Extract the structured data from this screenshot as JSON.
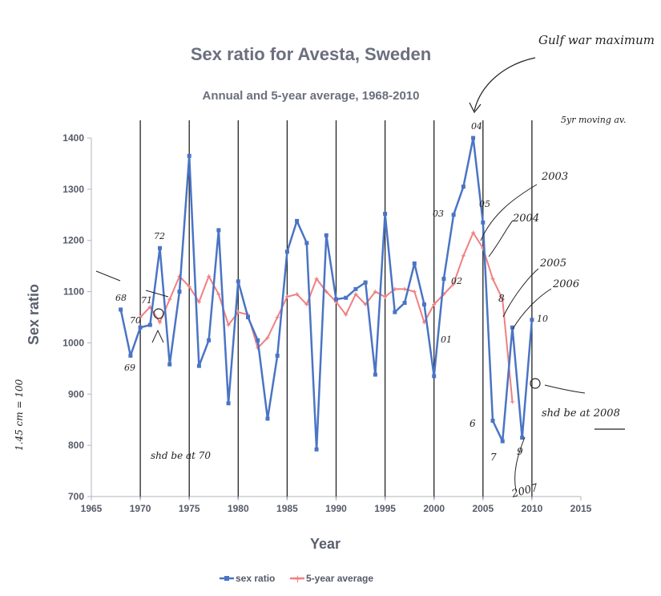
{
  "chart_data": {
    "type": "line",
    "title": "Sex ratio for Avesta, Sweden",
    "subtitle": "Annual and 5-year average, 1968-2010",
    "xlabel": "Year",
    "ylabel": "Sex ratio",
    "xlim": [
      1965,
      2015
    ],
    "ylim": [
      700,
      1400
    ],
    "x_ticks": [
      "1965",
      "1970",
      "1975",
      "1980",
      "1985",
      "1990",
      "1995",
      "2000",
      "2005",
      "2010",
      "2015"
    ],
    "y_ticks": [
      "700",
      "800",
      "900",
      "1000",
      "1100",
      "1200",
      "1300",
      "1400"
    ],
    "grid": false,
    "legend_position": "bottom",
    "series": [
      {
        "name": "sex ratio",
        "color": "#4a74c4",
        "x": [
          1968,
          1969,
          1970,
          1971,
          1972,
          1973,
          1974,
          1975,
          1976,
          1977,
          1978,
          1979,
          1980,
          1981,
          1982,
          1983,
          1984,
          1985,
          1986,
          1987,
          1988,
          1989,
          1990,
          1991,
          1992,
          1993,
          1994,
          1995,
          1996,
          1997,
          1998,
          1999,
          2000,
          2001,
          2002,
          2003,
          2004,
          2005,
          2006,
          2007,
          2008,
          2009,
          2010
        ],
        "y": [
          1065,
          975,
          1030,
          1035,
          1185,
          958,
          1100,
          1365,
          955,
          1005,
          1220,
          882,
          1120,
          1050,
          1005,
          852,
          975,
          1178,
          1238,
          1195,
          792,
          1210,
          1085,
          1088,
          1105,
          1118,
          938,
          1252,
          1060,
          1078,
          1155,
          1075,
          935,
          1125,
          1250,
          1305,
          1400,
          1235,
          848,
          808,
          1030,
          815,
          1045
        ]
      },
      {
        "name": "5-year average",
        "color": "#f08080",
        "x": [
          1970,
          1971,
          1972,
          1973,
          1974,
          1975,
          1976,
          1977,
          1978,
          1979,
          1980,
          1981,
          1982,
          1983,
          1984,
          1985,
          1986,
          1987,
          1988,
          1989,
          1990,
          1991,
          1992,
          1993,
          1994,
          1995,
          1996,
          1997,
          1998,
          1999,
          2000,
          2001,
          2002,
          2003,
          2004,
          2005,
          2006,
          2007,
          2008
        ],
        "y": [
          1050,
          1070,
          1040,
          1085,
          1130,
          1110,
          1080,
          1130,
          1095,
          1035,
          1060,
          1055,
          990,
          1010,
          1050,
          1090,
          1095,
          1075,
          1125,
          1100,
          1080,
          1055,
          1095,
          1075,
          1100,
          1090,
          1105,
          1105,
          1100,
          1040,
          1075,
          1095,
          1115,
          1170,
          1215,
          1185,
          1125,
          1085,
          885
        ]
      }
    ],
    "annotations": {
      "point_labels": [
        "68",
        "69",
        "71",
        "70",
        "72",
        "01",
        "02",
        "03",
        "04",
        "05",
        "6",
        "7",
        "8",
        "9",
        "10"
      ],
      "notes": [
        "Gulf war maximum",
        "5yr moving av.",
        "2003",
        "2004",
        "2005",
        "2006",
        "2007",
        "shd be at 70",
        "shd be at 2008",
        "1.45 cm = 100"
      ]
    }
  }
}
